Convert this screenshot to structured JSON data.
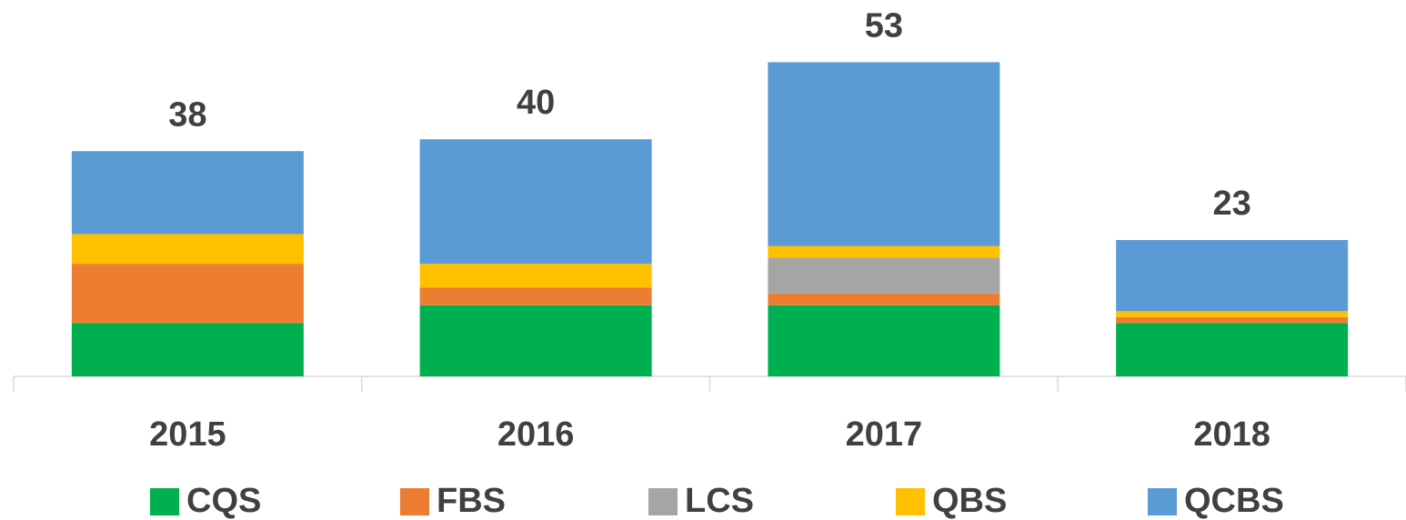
{
  "chart_data": {
    "type": "stacked_bar",
    "categories": [
      "2015",
      "2016",
      "2017",
      "2018"
    ],
    "series": [
      {
        "name": "CQS",
        "color": "#00b050",
        "values": [
          9,
          12,
          12,
          9
        ]
      },
      {
        "name": "FBS",
        "color": "#ed7d31",
        "values": [
          10,
          3,
          2,
          1
        ]
      },
      {
        "name": "LCS",
        "color": "#a5a5a5",
        "values": [
          0,
          0,
          6,
          0
        ]
      },
      {
        "name": "QBS",
        "color": "#ffc000",
        "values": [
          5,
          4,
          2,
          1
        ]
      },
      {
        "name": "QCBS",
        "color": "#5b9bd5",
        "values": [
          14,
          21,
          31,
          12
        ]
      }
    ],
    "totals": [
      38,
      40,
      53,
      23
    ],
    "ylim": [
      0,
      55
    ],
    "legend": "bottom"
  }
}
